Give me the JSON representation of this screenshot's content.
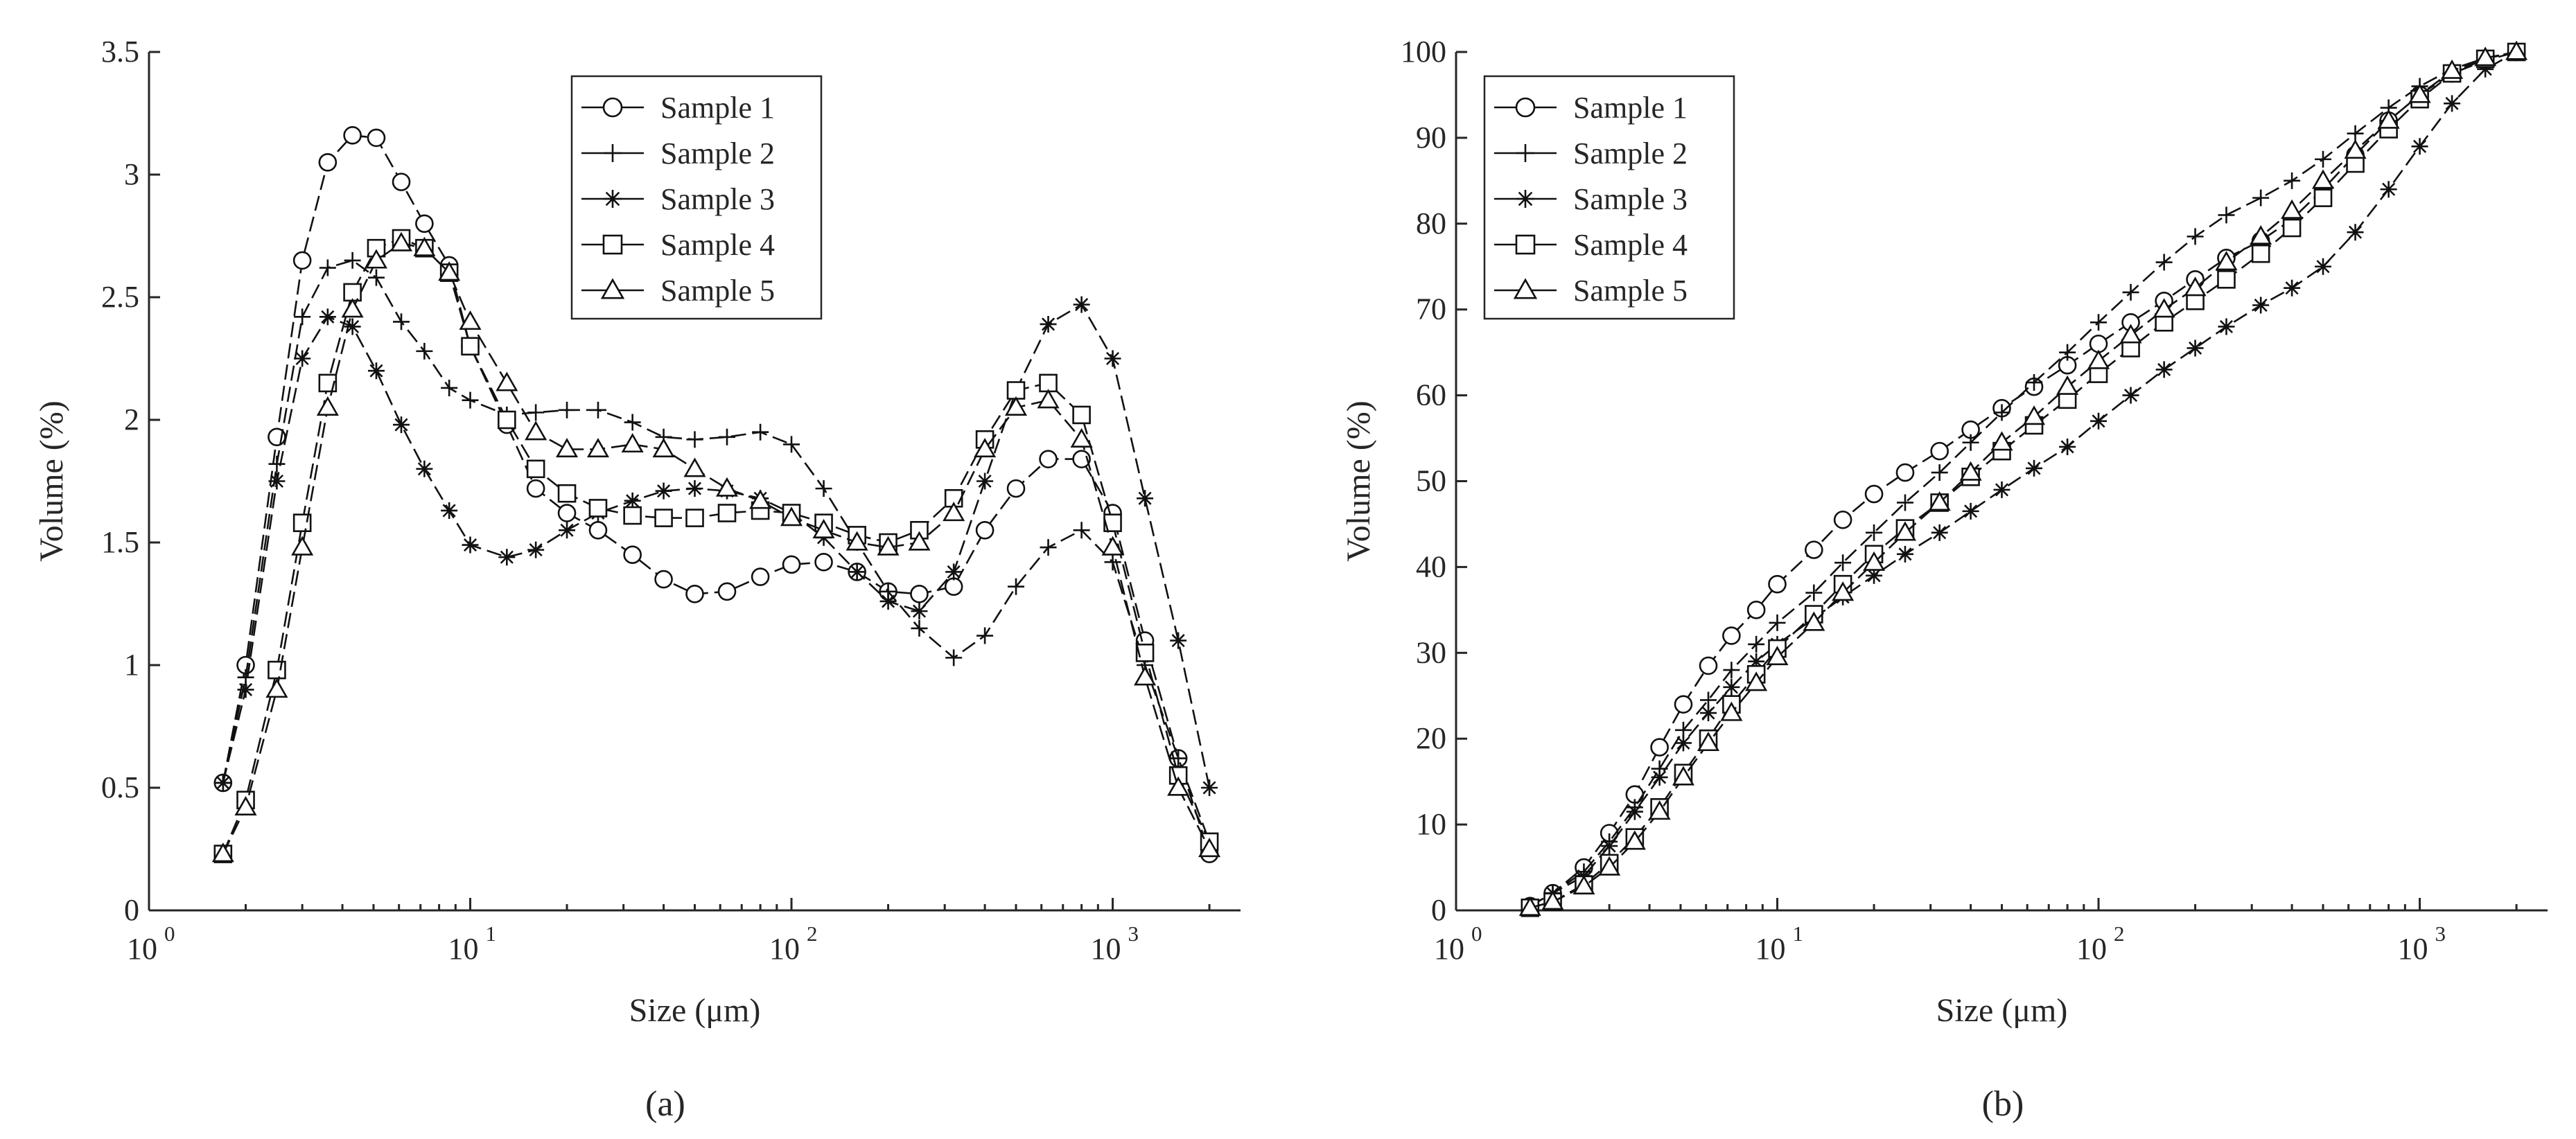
{
  "chart_data": [
    {
      "type": "line",
      "panel_label": "(a)",
      "xlabel": "Size (μm)",
      "ylabel": "Volume (%)",
      "xscale": "log",
      "xlim": [
        1,
        2500
      ],
      "ylim": [
        0,
        3.5
      ],
      "x_ticks": [
        "10",
        "10",
        "10",
        "10"
      ],
      "x_tick_exponents": [
        "0",
        "1",
        "2",
        "3"
      ],
      "y_ticks": [
        "0",
        "0.5",
        "1",
        "1.5",
        "2",
        "2.5",
        "3",
        "3.5"
      ],
      "legend_position": "top-center",
      "series": [
        {
          "name": "Sample 1",
          "marker": "circle",
          "x": [
            1.7,
            2,
            2.5,
            3,
            3.6,
            4.3,
            5.1,
            6.1,
            7.2,
            8.6,
            10,
            13,
            16,
            20,
            25,
            32,
            40,
            50,
            63,
            80,
            100,
            126,
            160,
            200,
            250,
            320,
            400,
            500,
            630,
            800,
            1000,
            1260,
            1600,
            2000
          ],
          "values": [
            0.52,
            1.0,
            1.93,
            2.65,
            3.05,
            3.16,
            3.15,
            2.97,
            2.8,
            2.63,
            2.3,
            1.98,
            1.72,
            1.62,
            1.55,
            1.45,
            1.35,
            1.29,
            1.3,
            1.36,
            1.41,
            1.42,
            1.38,
            1.3,
            1.29,
            1.32,
            1.55,
            1.72,
            1.84,
            1.84,
            1.62,
            1.1,
            0.62,
            0.23
          ]
        },
        {
          "name": "Sample 2",
          "marker": "plus",
          "x": [
            1.7,
            2,
            2.5,
            3,
            3.6,
            4.3,
            5.1,
            6.1,
            7.2,
            8.6,
            10,
            13,
            16,
            20,
            25,
            32,
            40,
            50,
            63,
            80,
            100,
            126,
            160,
            200,
            250,
            320,
            400,
            500,
            630,
            800,
            1000,
            1260,
            1600,
            2000
          ],
          "values": [
            0.52,
            0.95,
            1.82,
            2.42,
            2.62,
            2.65,
            2.58,
            2.4,
            2.28,
            2.13,
            2.08,
            2.02,
            2.03,
            2.04,
            2.04,
            1.99,
            1.93,
            1.92,
            1.93,
            1.95,
            1.9,
            1.72,
            1.5,
            1.3,
            1.15,
            1.03,
            1.12,
            1.32,
            1.48,
            1.55,
            1.42,
            1.0,
            0.62,
            0.28
          ]
        },
        {
          "name": "Sample 3",
          "marker": "asterisk",
          "x": [
            1.7,
            2,
            2.5,
            3,
            3.6,
            4.3,
            5.1,
            6.1,
            7.2,
            8.6,
            10,
            13,
            16,
            20,
            25,
            32,
            40,
            50,
            63,
            80,
            100,
            126,
            160,
            200,
            250,
            320,
            400,
            500,
            630,
            800,
            1000,
            1260,
            1600,
            2000
          ],
          "values": [
            0.52,
            0.9,
            1.75,
            2.25,
            2.42,
            2.38,
            2.2,
            1.98,
            1.8,
            1.63,
            1.49,
            1.44,
            1.47,
            1.55,
            1.62,
            1.67,
            1.71,
            1.72,
            1.71,
            1.68,
            1.62,
            1.52,
            1.38,
            1.26,
            1.22,
            1.38,
            1.75,
            2.12,
            2.39,
            2.47,
            2.25,
            1.68,
            1.1,
            0.5
          ]
        },
        {
          "name": "Sample 4",
          "marker": "square",
          "x": [
            1.7,
            2,
            2.5,
            3,
            3.6,
            4.3,
            5.1,
            6.1,
            7.2,
            8.6,
            10,
            13,
            16,
            20,
            25,
            32,
            40,
            50,
            63,
            80,
            100,
            126,
            160,
            200,
            250,
            320,
            400,
            500,
            630,
            800,
            1000,
            1260,
            1600,
            2000
          ],
          "values": [
            0.23,
            0.45,
            0.98,
            1.58,
            2.15,
            2.52,
            2.7,
            2.74,
            2.7,
            2.6,
            2.3,
            2.0,
            1.8,
            1.7,
            1.64,
            1.61,
            1.6,
            1.6,
            1.62,
            1.63,
            1.62,
            1.58,
            1.53,
            1.5,
            1.55,
            1.68,
            1.92,
            2.12,
            2.15,
            2.02,
            1.58,
            1.05,
            0.55,
            0.28
          ]
        },
        {
          "name": "Sample 5",
          "marker": "triangle",
          "x": [
            1.7,
            2,
            2.5,
            3,
            3.6,
            4.3,
            5.1,
            6.1,
            7.2,
            8.6,
            10,
            13,
            16,
            20,
            25,
            32,
            40,
            50,
            63,
            80,
            100,
            126,
            160,
            200,
            250,
            320,
            400,
            500,
            630,
            800,
            1000,
            1260,
            1600,
            2000
          ],
          "values": [
            0.23,
            0.42,
            0.9,
            1.48,
            2.05,
            2.45,
            2.65,
            2.72,
            2.7,
            2.6,
            2.4,
            2.15,
            1.95,
            1.88,
            1.88,
            1.9,
            1.88,
            1.8,
            1.72,
            1.67,
            1.6,
            1.55,
            1.5,
            1.48,
            1.5,
            1.62,
            1.88,
            2.05,
            2.08,
            1.92,
            1.48,
            0.95,
            0.5,
            0.25
          ]
        }
      ]
    },
    {
      "type": "line",
      "panel_label": "(b)",
      "xlabel": "Size (μm)",
      "ylabel": "Volume (%)",
      "xscale": "log",
      "xlim": [
        1,
        2500
      ],
      "ylim": [
        0,
        100
      ],
      "x_ticks": [
        "10",
        "10",
        "10",
        "10"
      ],
      "x_tick_exponents": [
        "0",
        "1",
        "2",
        "3"
      ],
      "y_ticks": [
        "0",
        "10",
        "20",
        "30",
        "40",
        "50",
        "60",
        "70",
        "80",
        "90",
        "100"
      ],
      "legend_position": "top-left",
      "series": [
        {
          "name": "Sample 1",
          "marker": "circle",
          "x": [
            1.7,
            2,
            2.5,
            3,
            3.6,
            4.3,
            5.1,
            6.1,
            7.2,
            8.6,
            10,
            13,
            16,
            20,
            25,
            32,
            40,
            50,
            63,
            80,
            100,
            126,
            160,
            200,
            250,
            320,
            400,
            500,
            630,
            800,
            1000,
            1260,
            1600,
            2000
          ],
          "values": [
            0.5,
            2,
            5,
            9,
            13.5,
            19,
            24,
            28.5,
            32,
            35,
            38,
            42,
            45.5,
            48.5,
            51,
            53.5,
            56,
            58.5,
            61,
            63.5,
            66,
            68.5,
            71,
            73.5,
            76,
            78,
            80.5,
            84,
            88,
            92,
            95,
            97.5,
            99,
            100
          ]
        },
        {
          "name": "Sample 2",
          "marker": "plus",
          "x": [
            1.7,
            2,
            2.5,
            3,
            3.6,
            4.3,
            5.1,
            6.1,
            7.2,
            8.6,
            10,
            13,
            16,
            20,
            25,
            32,
            40,
            50,
            63,
            80,
            100,
            126,
            160,
            200,
            250,
            320,
            400,
            500,
            630,
            800,
            1000,
            1260,
            1600,
            2000
          ],
          "values": [
            0.5,
            2,
            4.5,
            8,
            12,
            16.5,
            21,
            24.5,
            28,
            31,
            33.5,
            37,
            40.5,
            44,
            47.5,
            51,
            54.5,
            58,
            61.5,
            65,
            68.5,
            72,
            75.5,
            78.5,
            81,
            83,
            85,
            87.5,
            90.5,
            93.5,
            96,
            98,
            99.3,
            100
          ]
        },
        {
          "name": "Sample 3",
          "marker": "asterisk",
          "x": [
            1.7,
            2,
            2.5,
            3,
            3.6,
            4.3,
            5.1,
            6.1,
            7.2,
            8.6,
            10,
            13,
            16,
            20,
            25,
            32,
            40,
            50,
            63,
            80,
            100,
            126,
            160,
            200,
            250,
            320,
            400,
            500,
            630,
            800,
            1000,
            1260,
            1600,
            2000
          ],
          "values": [
            0.5,
            2,
            4,
            7.5,
            11.5,
            15.5,
            19.5,
            23,
            26,
            29,
            31,
            34,
            36.5,
            39,
            41.5,
            44,
            46.5,
            49,
            51.5,
            54,
            57,
            60,
            63,
            65.5,
            68,
            70.5,
            72.5,
            75,
            79,
            84,
            89,
            94,
            98,
            100
          ]
        },
        {
          "name": "Sample 4",
          "marker": "square",
          "x": [
            1.7,
            2,
            2.5,
            3,
            3.6,
            4.3,
            5.1,
            6.1,
            7.2,
            8.6,
            10,
            13,
            16,
            20,
            25,
            32,
            40,
            50,
            63,
            80,
            100,
            126,
            160,
            200,
            250,
            320,
            400,
            500,
            630,
            800,
            1000,
            1260,
            1600,
            2000
          ],
          "values": [
            0.3,
            1,
            3,
            5.5,
            8.5,
            12,
            16,
            20,
            24,
            27.5,
            30.5,
            34.5,
            38,
            41.5,
            44.5,
            47.5,
            50.5,
            53.5,
            56.5,
            59.5,
            62.5,
            65.5,
            68.5,
            71,
            73.5,
            76.5,
            79.5,
            83,
            87,
            91,
            94.5,
            97.5,
            99.2,
            100
          ]
        },
        {
          "name": "Sample 5",
          "marker": "triangle",
          "x": [
            1.7,
            2,
            2.5,
            3,
            3.6,
            4.3,
            5.1,
            6.1,
            7.2,
            8.6,
            10,
            13,
            16,
            20,
            25,
            32,
            40,
            50,
            63,
            80,
            100,
            126,
            160,
            200,
            250,
            320,
            400,
            500,
            630,
            800,
            1000,
            1260,
            1600,
            2000
          ],
          "values": [
            0.3,
            1,
            2.8,
            5,
            8,
            11.5,
            15.5,
            19.5,
            23,
            26.5,
            29.5,
            33.5,
            37,
            40.5,
            44,
            47.5,
            51,
            54.5,
            57.5,
            61,
            64,
            67,
            70,
            72.5,
            75.5,
            78.5,
            81.5,
            85,
            88.5,
            92,
            95,
            97.8,
            99.3,
            100
          ]
        }
      ]
    }
  ]
}
